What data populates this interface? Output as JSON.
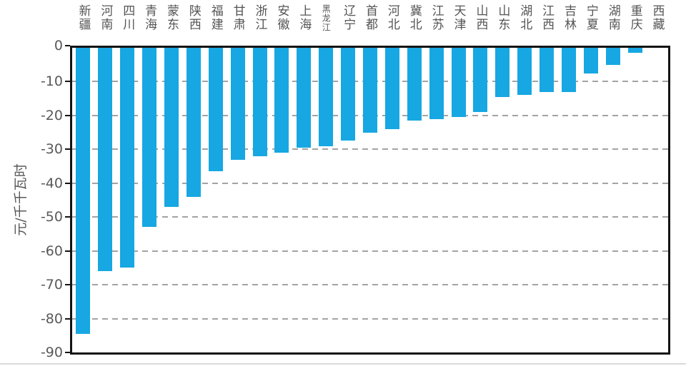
{
  "chart_data": {
    "type": "bar",
    "title": "",
    "xlabel": "",
    "ylabel": "元/千千瓦时",
    "ylim": [
      -90,
      0
    ],
    "yticks": [
      0,
      -10,
      -20,
      -30,
      -40,
      -50,
      -60,
      -70,
      -80,
      -90
    ],
    "grid": "horizontal-dashed",
    "legend_position": "none",
    "categories": [
      "新疆",
      "河南",
      "四川",
      "青海",
      "蒙东",
      "陕西",
      "福建",
      "甘肃",
      "浙江",
      "安徽",
      "上海",
      "黑龙江",
      "辽宁",
      "首都",
      "河北",
      "冀北",
      "江苏",
      "天津",
      "山西",
      "山东",
      "湖北",
      "江西",
      "吉林",
      "宁夏",
      "湖南",
      "重庆",
      "西藏"
    ],
    "values": [
      -84.5,
      -66,
      -65,
      -53,
      -47,
      -44,
      -36.5,
      -33,
      -32,
      -31,
      -29.5,
      -29,
      -27.5,
      -25,
      -24,
      -21.5,
      -21,
      -20.5,
      -19,
      -14.5,
      -14,
      -13,
      -13,
      -7.5,
      -5,
      -1.5,
      0
    ]
  },
  "colors": {
    "bar": "#17A7E2",
    "grid": "#A3A3A3",
    "axis_text": "#595959",
    "category_text": "#555555",
    "border": "#141414"
  }
}
